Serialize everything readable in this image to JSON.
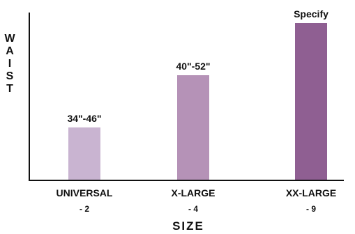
{
  "chart_data": {
    "type": "bar",
    "categories": [
      "UNIVERSAL",
      "X-LARGE",
      "XX-LARGE"
    ],
    "category_sublabels": [
      "- 2",
      "- 4",
      "- 9"
    ],
    "values": [
      1,
      2,
      3
    ],
    "bar_labels": [
      "34\"-46\"",
      "40\"-52\"",
      "Specify"
    ],
    "colors": [
      "#c9b4d1",
      "#b592b7",
      "#8f5f92"
    ],
    "xlabel": "SIZE",
    "ylabel": "WAIST",
    "ylim": [
      0,
      3.2
    ],
    "grid": false,
    "legend": "none"
  }
}
